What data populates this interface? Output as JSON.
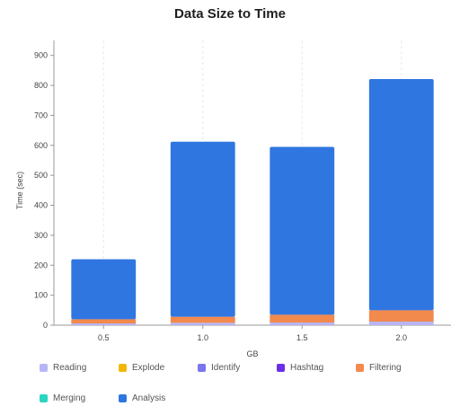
{
  "chart_data": {
    "type": "bar",
    "stacked": true,
    "title": "Data Size to Time",
    "xlabel": "GB",
    "ylabel": "Time (sec)",
    "categories": [
      "0.5",
      "1.0",
      "1.5",
      "2.0"
    ],
    "ylim": [
      0,
      950
    ],
    "yticks": [
      0,
      100,
      200,
      300,
      400,
      500,
      600,
      700,
      800,
      900
    ],
    "grid": {
      "vertical": true,
      "horizontal": false
    },
    "legend_position": "bottom",
    "series": [
      {
        "name": "Reading",
        "color": "#b8b5f5",
        "values": [
          6,
          8,
          9,
          12
        ]
      },
      {
        "name": "Explode",
        "color": "#f2b705",
        "values": [
          0,
          0,
          0,
          0
        ]
      },
      {
        "name": "Identify",
        "color": "#7a74f0",
        "values": [
          0,
          0,
          0,
          0
        ]
      },
      {
        "name": "Hashtag",
        "color": "#6a2fe8",
        "values": [
          0,
          0,
          0,
          0
        ]
      },
      {
        "name": "Filtering",
        "color": "#f2894d",
        "values": [
          14,
          20,
          26,
          38
        ]
      },
      {
        "name": "Merging",
        "color": "#2ad3c2",
        "values": [
          0,
          0,
          0,
          0
        ]
      },
      {
        "name": "Analysis",
        "color": "#2f76e0",
        "values": [
          200,
          584,
          560,
          771
        ]
      }
    ]
  }
}
